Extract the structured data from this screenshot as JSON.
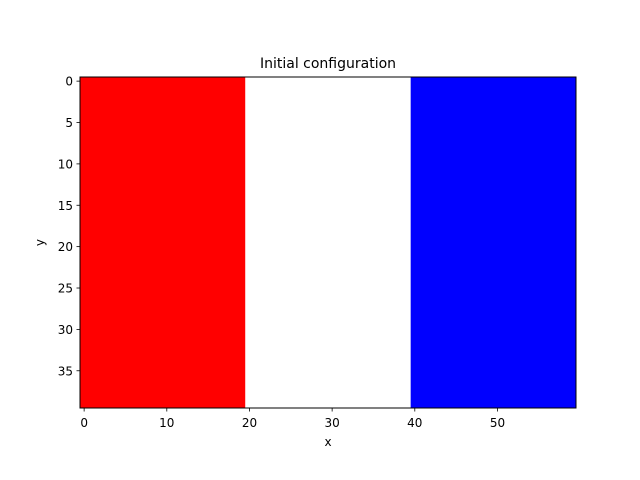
{
  "chart_data": {
    "type": "heatmap",
    "title": "Initial configuration",
    "xlabel": "x",
    "ylabel": "y",
    "grid_shape": [
      40,
      60
    ],
    "x_range": [
      0,
      60
    ],
    "y_range": [
      0,
      40
    ],
    "y_inverted": true,
    "x_ticks": [
      0,
      10,
      20,
      30,
      40,
      50
    ],
    "y_ticks": [
      0,
      5,
      10,
      15,
      20,
      25,
      30,
      35
    ],
    "regions": [
      {
        "x_start": 0,
        "x_end": 20,
        "color": "#ff0000",
        "label": ""
      },
      {
        "x_start": 20,
        "x_end": 40,
        "color": "#ffffff",
        "label": ""
      },
      {
        "x_start": 40,
        "x_end": 60,
        "color": "#0000ff",
        "label": ""
      }
    ],
    "grid": false,
    "legend": "none"
  }
}
